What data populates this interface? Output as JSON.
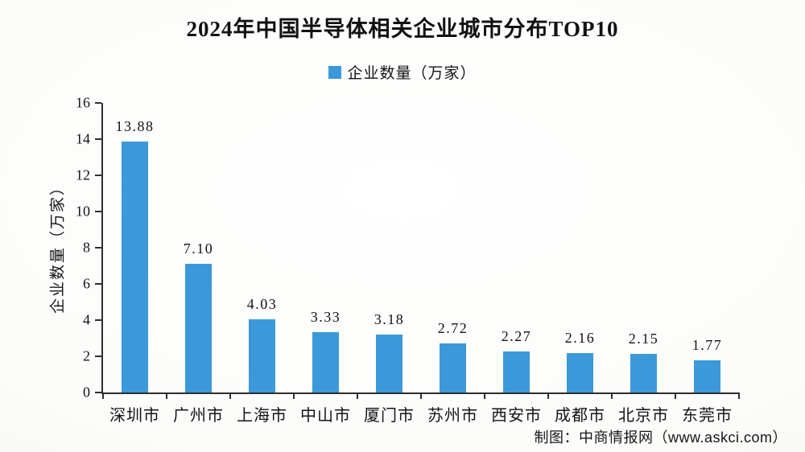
{
  "title": "2024年中国半导体相关企业城市分布TOP10",
  "footer": {
    "credit": "制图：中商情报网（www.askci.com）"
  },
  "chart_data": {
    "type": "bar",
    "title": "2024年中国半导体相关企业城市分布TOP10",
    "categories": [
      "深圳市",
      "广州市",
      "上海市",
      "中山市",
      "厦门市",
      "苏州市",
      "西安市",
      "成都市",
      "北京市",
      "东莞市"
    ],
    "series": [
      {
        "name": "企业数量（万家）",
        "values": [
          13.88,
          7.1,
          4.03,
          3.33,
          3.18,
          2.72,
          2.27,
          2.16,
          2.15,
          1.77
        ]
      }
    ],
    "xlabel": "",
    "ylabel": "企业数量（万家）",
    "ylim": [
      0,
      16
    ],
    "yticks": [
      0,
      2,
      4,
      6,
      8,
      10,
      12,
      14,
      16
    ],
    "bar_color": "#3b99da",
    "legend_position": "top-center",
    "grid": false,
    "value_labels": true,
    "value_label_decimals": 2
  }
}
